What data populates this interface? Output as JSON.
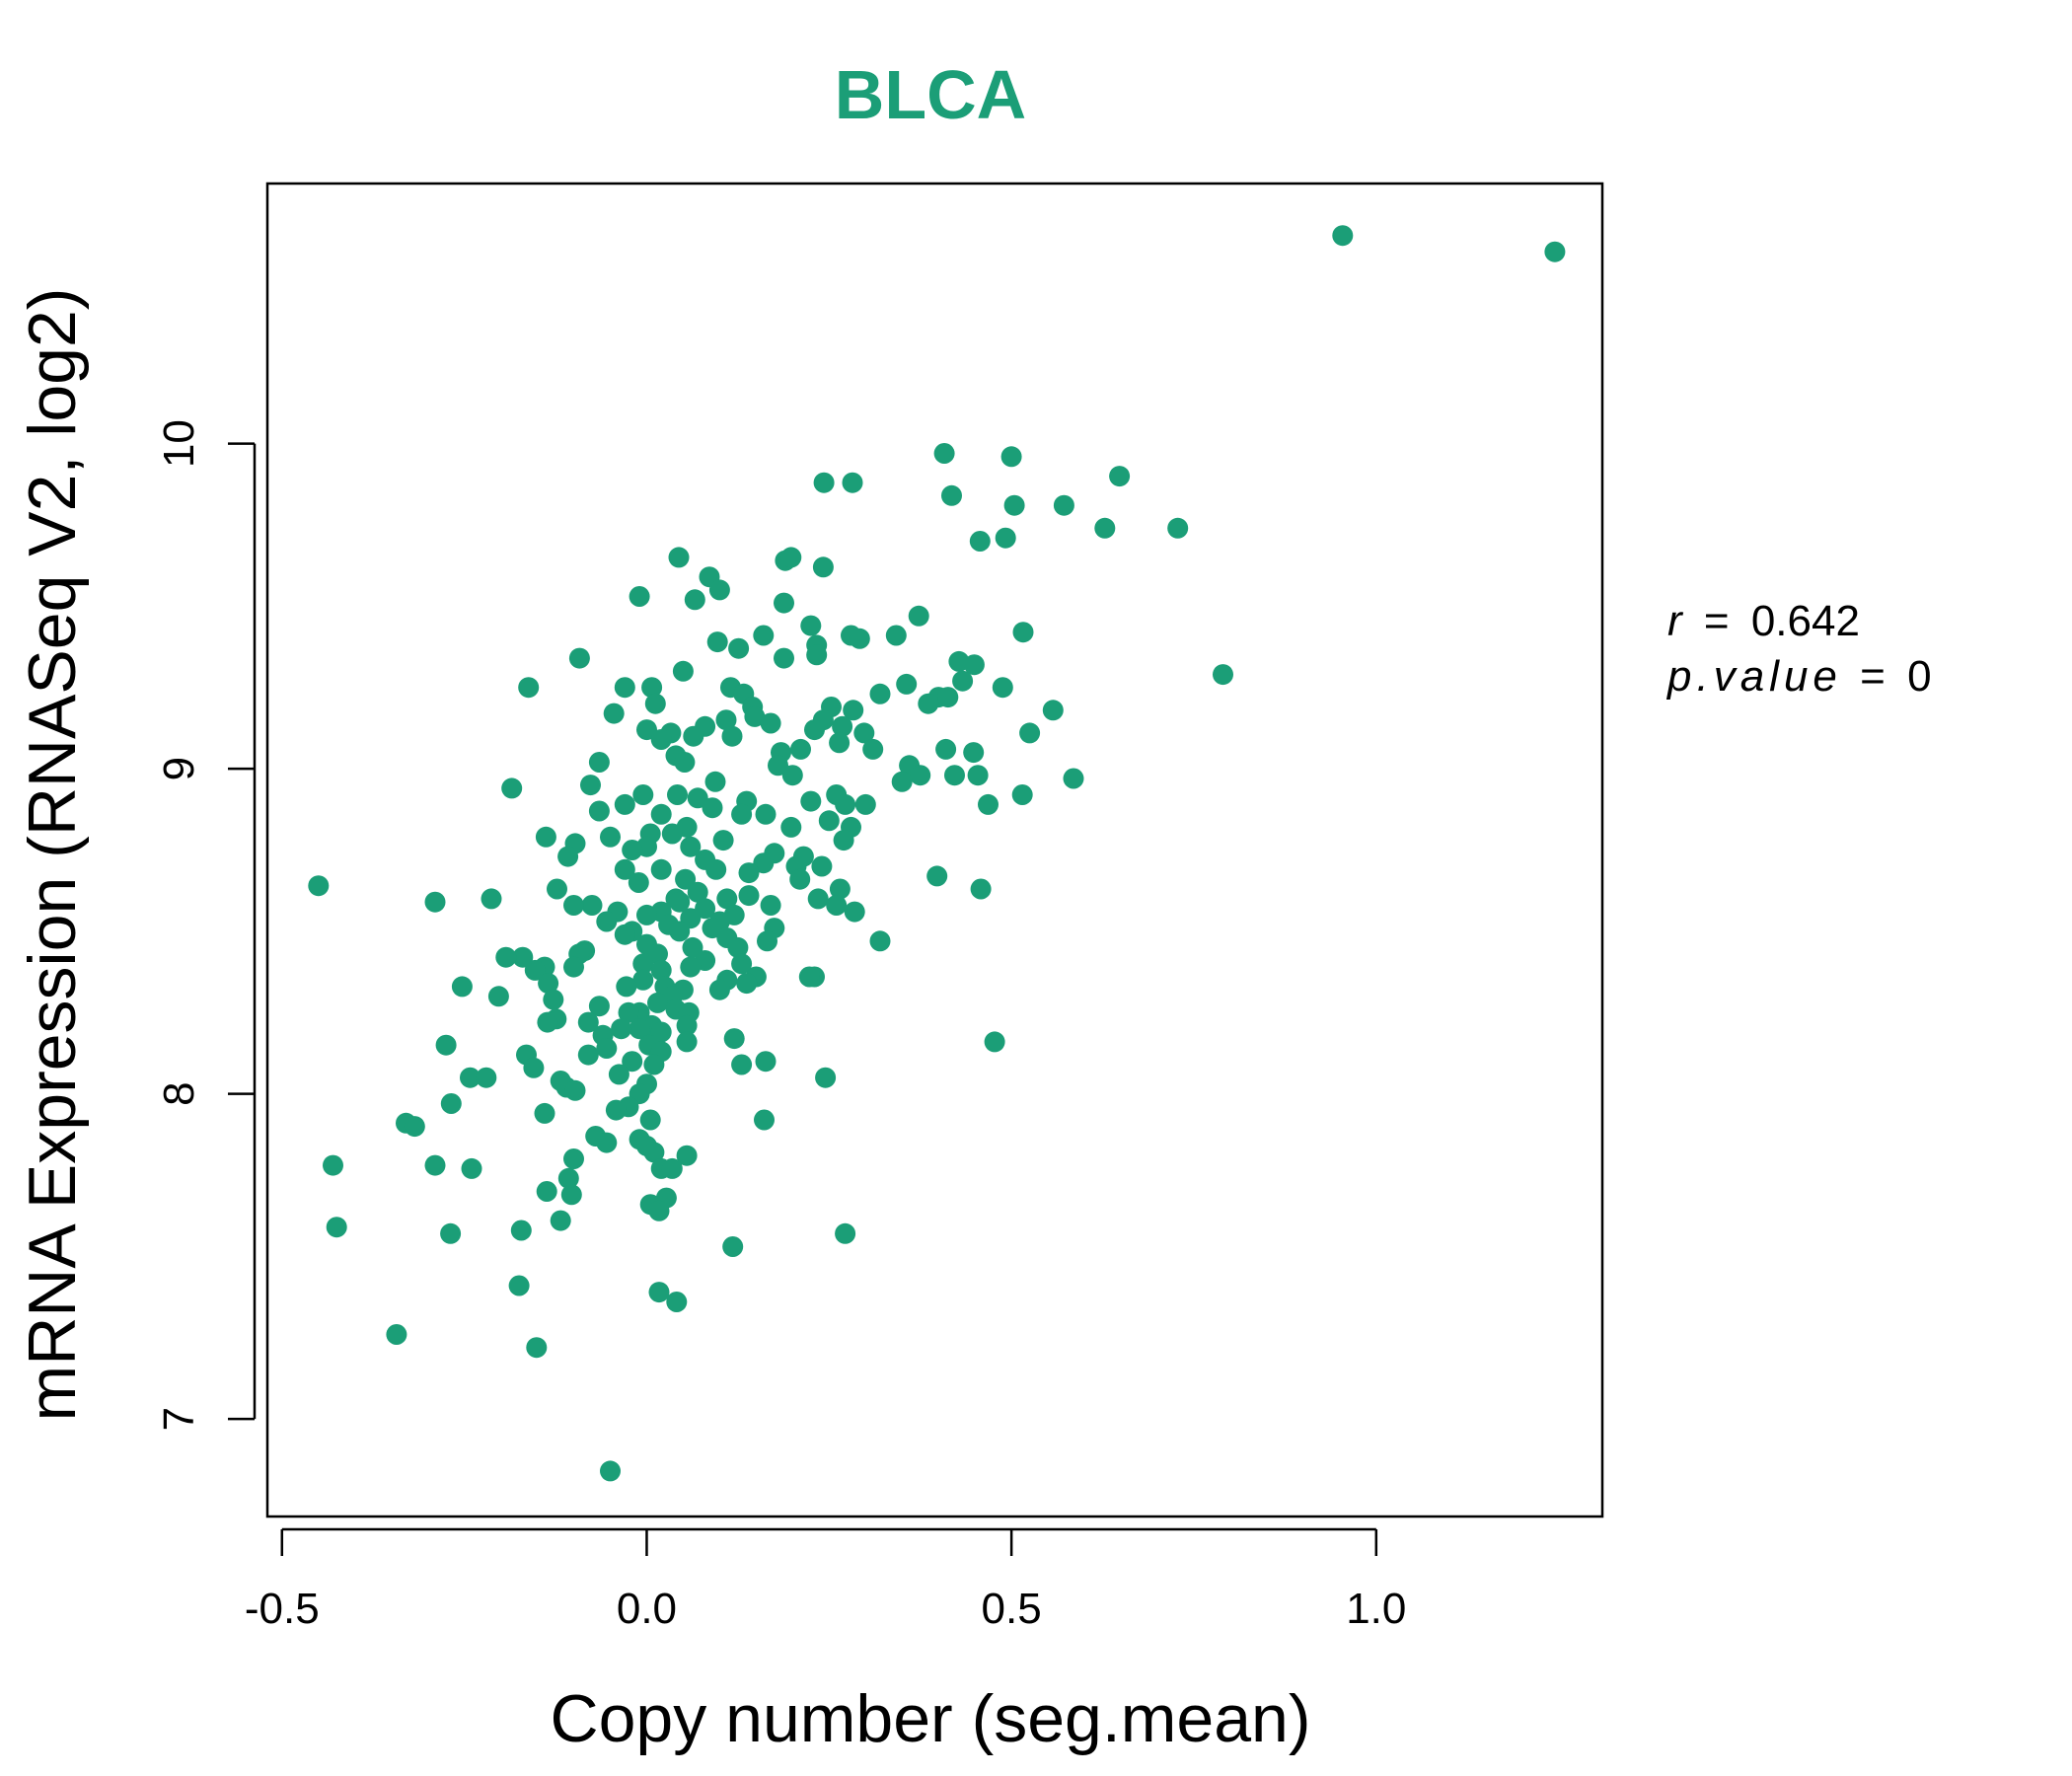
{
  "colors": {
    "accent": "#1b9e77",
    "axis": "#000000",
    "background": "#ffffff"
  },
  "chart_data": {
    "type": "scatter",
    "title": "BLCA",
    "xlabel": "Copy number (seg.mean)",
    "ylabel": "mRNA Expression (RNASeq V2, log2)",
    "xlim": [
      -0.52,
      1.31
    ],
    "ylim": [
      6.7,
      10.8
    ],
    "x_ticks": [
      -0.5,
      0.0,
      0.5,
      1.0
    ],
    "x_tick_labels": [
      "-0.5",
      "0.0",
      "0.5",
      "1.0"
    ],
    "y_ticks": [
      7,
      8,
      9,
      10
    ],
    "y_tick_labels": [
      "7",
      "8",
      "9",
      "10"
    ],
    "grid": false,
    "stats": {
      "r_label": "r",
      "r_value": "0.642",
      "p_label": "p.value",
      "p_value": "0"
    },
    "points": [
      [
        0.954,
        10.64
      ],
      [
        1.245,
        10.59
      ],
      [
        0.408,
        9.97
      ],
      [
        0.5,
        9.96
      ],
      [
        0.648,
        9.9
      ],
      [
        0.243,
        9.88
      ],
      [
        0.282,
        9.88
      ],
      [
        0.418,
        9.84
      ],
      [
        0.504,
        9.81
      ],
      [
        0.572,
        9.81
      ],
      [
        0.628,
        9.74
      ],
      [
        0.728,
        9.74
      ],
      [
        0.457,
        9.7
      ],
      [
        0.492,
        9.71
      ],
      [
        0.044,
        9.65
      ],
      [
        0.19,
        9.64
      ],
      [
        0.198,
        9.65
      ],
      [
        0.242,
        9.62
      ],
      [
        0.086,
        9.59
      ],
      [
        0.1,
        9.55
      ],
      [
        -0.01,
        9.53
      ],
      [
        0.066,
        9.52
      ],
      [
        0.188,
        9.51
      ],
      [
        0.373,
        9.47
      ],
      [
        0.225,
        9.44
      ],
      [
        0.16,
        9.41
      ],
      [
        0.28,
        9.41
      ],
      [
        0.342,
        9.41
      ],
      [
        0.516,
        9.42
      ],
      [
        0.292,
        9.4
      ],
      [
        0.097,
        9.39
      ],
      [
        0.126,
        9.37
      ],
      [
        0.233,
        9.38
      ],
      [
        0.188,
        9.34
      ],
      [
        0.233,
        9.35
      ],
      [
        -0.092,
        9.34
      ],
      [
        0.428,
        9.33
      ],
      [
        0.449,
        9.32
      ],
      [
        0.05,
        9.3
      ],
      [
        0.79,
        9.29
      ],
      [
        0.433,
        9.27
      ],
      [
        0.356,
        9.26
      ],
      [
        -0.162,
        9.25
      ],
      [
        -0.03,
        9.25
      ],
      [
        0.007,
        9.25
      ],
      [
        0.115,
        9.25
      ],
      [
        0.133,
        9.23
      ],
      [
        0.488,
        9.25
      ],
      [
        0.32,
        9.23
      ],
      [
        0.4,
        9.22
      ],
      [
        0.413,
        9.22
      ],
      [
        0.386,
        9.2
      ],
      [
        0.145,
        9.19
      ],
      [
        0.253,
        9.19
      ],
      [
        0.283,
        9.18
      ],
      [
        0.012,
        9.2
      ],
      [
        0.557,
        9.18
      ],
      [
        -0.045,
        9.17
      ],
      [
        0.148,
        9.16
      ],
      [
        0.242,
        9.15
      ],
      [
        0.109,
        9.15
      ],
      [
        0.17,
        9.14
      ],
      [
        0.0,
        9.12
      ],
      [
        0.08,
        9.13
      ],
      [
        0.23,
        9.12
      ],
      [
        0.268,
        9.13
      ],
      [
        0.033,
        9.11
      ],
      [
        0.064,
        9.1
      ],
      [
        0.117,
        9.1
      ],
      [
        0.298,
        9.11
      ],
      [
        0.525,
        9.11
      ],
      [
        0.41,
        9.06
      ],
      [
        0.448,
        9.05
      ],
      [
        0.264,
        9.08
      ],
      [
        0.02,
        9.09
      ],
      [
        0.211,
        9.06
      ],
      [
        0.184,
        9.05
      ],
      [
        0.31,
        9.06
      ],
      [
        0.04,
        9.04
      ],
      [
        0.052,
        9.02
      ],
      [
        -0.065,
        9.02
      ],
      [
        0.18,
        9.01
      ],
      [
        0.36,
        9.01
      ],
      [
        0.375,
        8.98
      ],
      [
        0.454,
        8.98
      ],
      [
        0.422,
        8.98
      ],
      [
        0.585,
        8.97
      ],
      [
        0.2,
        8.98
      ],
      [
        0.35,
        8.96
      ],
      [
        0.094,
        8.96
      ],
      [
        -0.077,
        8.95
      ],
      [
        -0.185,
        8.94
      ],
      [
        0.515,
        8.92
      ],
      [
        0.26,
        8.92
      ],
      [
        -0.005,
        8.92
      ],
      [
        0.042,
        8.92
      ],
      [
        0.07,
        8.91
      ],
      [
        0.137,
        8.9
      ],
      [
        0.225,
        8.9
      ],
      [
        0.3,
        8.89
      ],
      [
        0.468,
        8.89
      ],
      [
        0.272,
        8.89
      ],
      [
        -0.03,
        8.89
      ],
      [
        0.09,
        8.88
      ],
      [
        -0.065,
        8.87
      ],
      [
        0.163,
        8.86
      ],
      [
        0.13,
        8.86
      ],
      [
        0.02,
        8.86
      ],
      [
        0.25,
        8.84
      ],
      [
        0.198,
        8.82
      ],
      [
        0.055,
        8.82
      ],
      [
        0.28,
        8.82
      ],
      [
        0.005,
        8.8
      ],
      [
        0.035,
        8.8
      ],
      [
        -0.05,
        8.79
      ],
      [
        -0.138,
        8.79
      ],
      [
        0.105,
        8.78
      ],
      [
        -0.098,
        8.77
      ],
      [
        0.27,
        8.78
      ],
      [
        0.0,
        8.76
      ],
      [
        0.06,
        8.76
      ],
      [
        -0.02,
        8.75
      ],
      [
        0.175,
        8.74
      ],
      [
        0.215,
        8.73
      ],
      [
        -0.108,
        8.73
      ],
      [
        0.08,
        8.72
      ],
      [
        0.16,
        8.71
      ],
      [
        0.205,
        8.7
      ],
      [
        0.24,
        8.7
      ],
      [
        0.02,
        8.69
      ],
      [
        -0.03,
        8.69
      ],
      [
        0.095,
        8.69
      ],
      [
        0.14,
        8.68
      ],
      [
        0.398,
        8.67
      ],
      [
        0.21,
        8.66
      ],
      [
        0.053,
        8.66
      ],
      [
        -0.011,
        8.65
      ],
      [
        -0.45,
        8.64
      ],
      [
        0.458,
        8.63
      ],
      [
        0.265,
        8.63
      ],
      [
        -0.123,
        8.63
      ],
      [
        0.07,
        8.62
      ],
      [
        0.14,
        8.61
      ],
      [
        0.11,
        8.6
      ],
      [
        -0.213,
        8.6
      ],
      [
        0.235,
        8.6
      ],
      [
        0.04,
        8.6
      ],
      [
        -0.29,
        8.59
      ],
      [
        0.045,
        8.59
      ],
      [
        0.17,
        8.58
      ],
      [
        0.26,
        8.58
      ],
      [
        -0.075,
        8.58
      ],
      [
        -0.1,
        8.58
      ],
      [
        0.08,
        8.57
      ],
      [
        0.02,
        8.56
      ],
      [
        0.285,
        8.56
      ],
      [
        -0.04,
        8.56
      ],
      [
        0.12,
        8.55
      ],
      [
        0.0,
        8.55
      ],
      [
        0.06,
        8.54
      ],
      [
        -0.055,
        8.53
      ],
      [
        0.1,
        8.53
      ],
      [
        0.03,
        8.52
      ],
      [
        0.09,
        8.51
      ],
      [
        0.175,
        8.51
      ],
      [
        -0.02,
        8.5
      ],
      [
        0.045,
        8.5
      ],
      [
        -0.03,
        8.49
      ],
      [
        0.11,
        8.48
      ],
      [
        0.32,
        8.47
      ],
      [
        0.165,
        8.47
      ],
      [
        0.0,
        8.46
      ],
      [
        0.063,
        8.45
      ],
      [
        0.125,
        8.45
      ],
      [
        -0.085,
        8.44
      ],
      [
        -0.093,
        8.43
      ],
      [
        0.015,
        8.43
      ],
      [
        -0.17,
        8.42
      ],
      [
        -0.193,
        8.42
      ],
      [
        0.08,
        8.41
      ],
      [
        0.13,
        8.4
      ],
      [
        -0.005,
        8.4
      ],
      [
        0.06,
        8.39
      ],
      [
        -0.1,
        8.39
      ],
      [
        -0.14,
        8.39
      ],
      [
        0.02,
        8.38
      ],
      [
        -0.153,
        8.38
      ],
      [
        0.23,
        8.36
      ],
      [
        0.223,
        8.36
      ],
      [
        0.15,
        8.36
      ],
      [
        -0.005,
        8.35
      ],
      [
        0.11,
        8.35
      ],
      [
        -0.135,
        8.34
      ],
      [
        0.137,
        8.34
      ],
      [
        -0.253,
        8.33
      ],
      [
        0.025,
        8.33
      ],
      [
        -0.028,
        8.33
      ],
      [
        0.05,
        8.32
      ],
      [
        0.1,
        8.32
      ],
      [
        0.035,
        8.3
      ],
      [
        -0.203,
        8.3
      ],
      [
        -0.128,
        8.29
      ],
      [
        0.015,
        8.28
      ],
      [
        -0.065,
        8.27
      ],
      [
        0.04,
        8.26
      ],
      [
        -0.01,
        8.25
      ],
      [
        -0.025,
        8.25
      ],
      [
        0.058,
        8.25
      ],
      [
        -0.124,
        8.23
      ],
      [
        -0.136,
        8.22
      ],
      [
        -0.08,
        8.22
      ],
      [
        0.007,
        8.21
      ],
      [
        0.055,
        8.21
      ],
      [
        -0.01,
        8.2
      ],
      [
        -0.035,
        8.2
      ],
      [
        0.02,
        8.19
      ],
      [
        -0.06,
        8.18
      ],
      [
        0.12,
        8.17
      ],
      [
        0.477,
        8.16
      ],
      [
        0.055,
        8.16
      ],
      [
        -0.275,
        8.15
      ],
      [
        0.003,
        8.15
      ],
      [
        -0.055,
        8.14
      ],
      [
        0.02,
        8.13
      ],
      [
        -0.08,
        8.12
      ],
      [
        -0.165,
        8.12
      ],
      [
        0.163,
        8.1
      ],
      [
        -0.02,
        8.1
      ],
      [
        0.01,
        8.09
      ],
      [
        -0.155,
        8.08
      ],
      [
        0.13,
        8.09
      ],
      [
        -0.038,
        8.06
      ],
      [
        -0.242,
        8.05
      ],
      [
        -0.22,
        8.05
      ],
      [
        0.245,
        8.05
      ],
      [
        -0.118,
        8.04
      ],
      [
        0.0,
        8.03
      ],
      [
        -0.11,
        8.02
      ],
      [
        -0.098,
        8.01
      ],
      [
        -0.01,
        8.0
      ],
      [
        -0.268,
        7.97
      ],
      [
        -0.025,
        7.96
      ],
      [
        -0.042,
        7.95
      ],
      [
        -0.14,
        7.94
      ],
      [
        0.161,
        7.92
      ],
      [
        0.005,
        7.92
      ],
      [
        -0.33,
        7.91
      ],
      [
        -0.318,
        7.9
      ],
      [
        -0.07,
        7.87
      ],
      [
        -0.01,
        7.86
      ],
      [
        -0.055,
        7.85
      ],
      [
        0.0,
        7.84
      ],
      [
        0.01,
        7.82
      ],
      [
        0.055,
        7.81
      ],
      [
        -0.1,
        7.8
      ],
      [
        -0.43,
        7.78
      ],
      [
        -0.29,
        7.78
      ],
      [
        -0.24,
        7.77
      ],
      [
        0.02,
        7.77
      ],
      [
        0.035,
        7.77
      ],
      [
        -0.107,
        7.74
      ],
      [
        -0.137,
        7.7
      ],
      [
        -0.103,
        7.69
      ],
      [
        0.027,
        7.68
      ],
      [
        0.005,
        7.66
      ],
      [
        0.017,
        7.64
      ],
      [
        -0.118,
        7.61
      ],
      [
        -0.425,
        7.59
      ],
      [
        -0.172,
        7.58
      ],
      [
        0.272,
        7.57
      ],
      [
        -0.269,
        7.57
      ],
      [
        0.118,
        7.53
      ],
      [
        -0.175,
        7.41
      ],
      [
        0.017,
        7.39
      ],
      [
        0.041,
        7.36
      ],
      [
        -0.343,
        7.26
      ],
      [
        -0.151,
        7.22
      ],
      [
        -0.05,
        6.84
      ]
    ]
  }
}
